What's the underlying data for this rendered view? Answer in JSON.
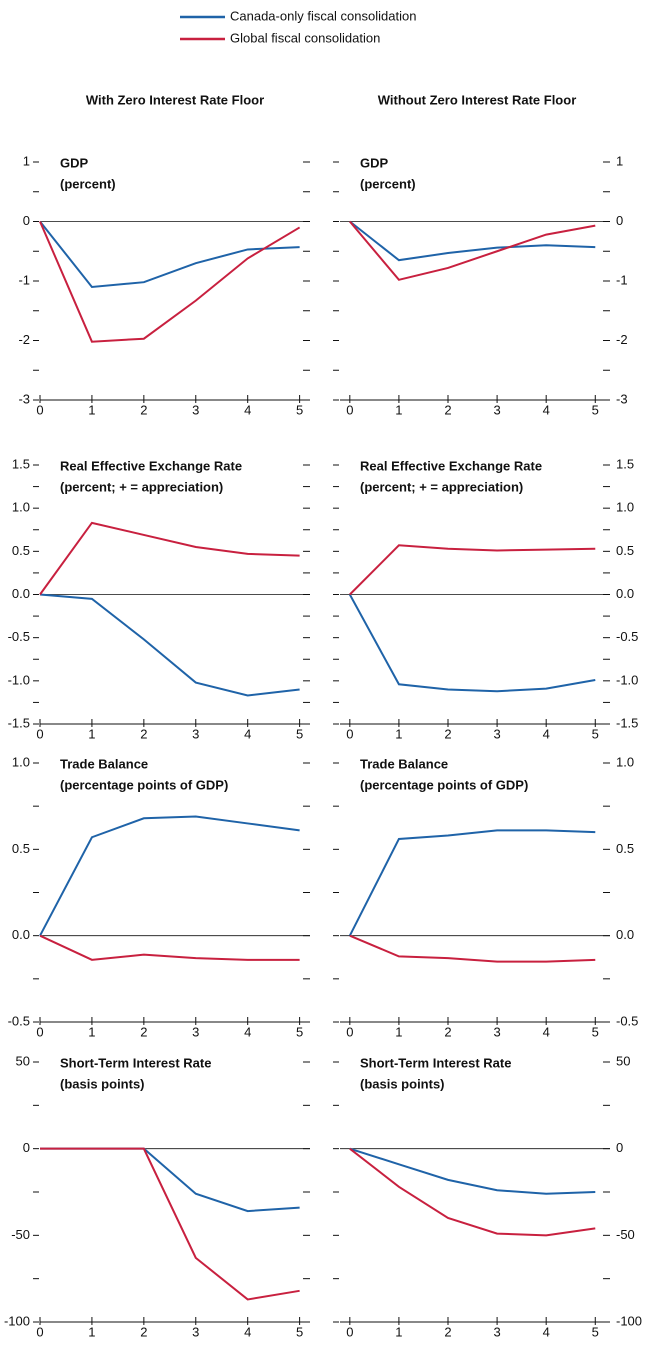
{
  "column_titles": [
    "With Zero Interest Rate Floor",
    "Without Zero Interest Rate Floor"
  ],
  "chart_data": [
    {
      "type": "line",
      "title": "GDP",
      "subtitle": "(percent)",
      "label_side": "left",
      "x": [
        0,
        1,
        2,
        3,
        4,
        5
      ],
      "xlim": [
        0,
        5.2
      ],
      "xticks": [
        0,
        1,
        2,
        3,
        4,
        5
      ],
      "ylim": [
        -3,
        1
      ],
      "yticks": [
        -3,
        -2,
        -1,
        0,
        1
      ],
      "yminorticks": [
        -2.5,
        -1.5,
        -0.5,
        0.5
      ],
      "zero_line": true,
      "series": [
        {
          "name": "Canada-only fiscal consolidation",
          "color": "#1f63a8",
          "values": [
            0,
            -1.1,
            -1.02,
            -0.7,
            -0.47,
            -0.43
          ]
        },
        {
          "name": "Global fiscal consolidation",
          "color": "#c8203f",
          "values": [
            0,
            -2.02,
            -1.97,
            -1.33,
            -0.62,
            -0.1
          ]
        }
      ]
    },
    {
      "type": "line",
      "title": "GDP",
      "subtitle": "(percent)",
      "label_side": "right",
      "x": [
        0,
        1,
        2,
        3,
        4,
        5
      ],
      "xlim": [
        -0.2,
        5.3
      ],
      "xticks": [
        0,
        1,
        2,
        3,
        4,
        5
      ],
      "ylim": [
        -3,
        1
      ],
      "yticks": [
        -3,
        -2,
        -1,
        0,
        1
      ],
      "yminorticks": [
        -2.5,
        -1.5,
        -0.5,
        0.5
      ],
      "zero_line": true,
      "series": [
        {
          "name": "Canada-only fiscal consolidation",
          "color": "#1f63a8",
          "values": [
            0,
            -0.65,
            -0.53,
            -0.44,
            -0.4,
            -0.43
          ]
        },
        {
          "name": "Global fiscal consolidation",
          "color": "#c8203f",
          "values": [
            0,
            -0.98,
            -0.78,
            -0.5,
            -0.22,
            -0.07
          ]
        }
      ]
    },
    {
      "type": "line",
      "title": "Real Effective Exchange Rate",
      "subtitle": "(percent; + = appreciation)",
      "label_side": "left",
      "x": [
        0,
        1,
        2,
        3,
        4,
        5
      ],
      "xlim": [
        0,
        5.2
      ],
      "xticks": [
        0,
        1,
        2,
        3,
        4,
        5
      ],
      "ylim": [
        -1.5,
        1.5
      ],
      "yticks": [
        -1.5,
        {
          "value": -1,
          "label": "-1.0"
        },
        -0.5,
        {
          "value": 0,
          "label": "0.0"
        },
        0.5,
        {
          "value": 1,
          "label": "1.0"
        },
        1.5
      ],
      "yminorticks": [
        -1.25,
        -0.75,
        -0.25,
        0.25,
        0.75,
        1.25
      ],
      "zero_line": true,
      "series": [
        {
          "name": "Canada-only fiscal consolidation",
          "color": "#1f63a8",
          "values": [
            0,
            -0.05,
            -0.52,
            -1.02,
            -1.17,
            -1.1
          ]
        },
        {
          "name": "Global fiscal consolidation",
          "color": "#c8203f",
          "values": [
            0,
            0.83,
            0.69,
            0.55,
            0.47,
            0.45
          ]
        }
      ]
    },
    {
      "type": "line",
      "title": "Real Effective Exchange Rate",
      "subtitle": "(percent; + = appreciation)",
      "label_side": "right",
      "x": [
        0,
        1,
        2,
        3,
        4,
        5
      ],
      "xlim": [
        -0.2,
        5.3
      ],
      "xticks": [
        0,
        1,
        2,
        3,
        4,
        5
      ],
      "ylim": [
        -1.5,
        1.5
      ],
      "yticks": [
        -1.5,
        {
          "value": -1,
          "label": "-1.0"
        },
        -0.5,
        {
          "value": 0,
          "label": "0.0"
        },
        0.5,
        {
          "value": 1,
          "label": "1.0"
        },
        1.5
      ],
      "yminorticks": [
        -1.25,
        -0.75,
        -0.25,
        0.25,
        0.75,
        1.25
      ],
      "zero_line": true,
      "series": [
        {
          "name": "Canada-only fiscal consolidation",
          "color": "#1f63a8",
          "values": [
            0,
            -1.04,
            -1.1,
            -1.12,
            -1.09,
            -0.99
          ]
        },
        {
          "name": "Global fiscal consolidation",
          "color": "#c8203f",
          "values": [
            0,
            0.57,
            0.53,
            0.51,
            0.52,
            0.53
          ]
        }
      ]
    },
    {
      "type": "line",
      "title": "Trade Balance",
      "subtitle": "(percentage points of GDP)",
      "label_side": "left",
      "x": [
        0,
        1,
        2,
        3,
        4,
        5
      ],
      "xlim": [
        0,
        5.2
      ],
      "xticks": [
        0,
        1,
        2,
        3,
        4,
        5
      ],
      "ylim": [
        -0.5,
        1
      ],
      "yticks": [
        -0.5,
        {
          "value": 0,
          "label": "0.0"
        },
        0.5,
        {
          "value": 1,
          "label": "1.0"
        }
      ],
      "yminorticks": [
        -0.25,
        0.25,
        0.75
      ],
      "zero_line": true,
      "series": [
        {
          "name": "Canada-only fiscal consolidation",
          "color": "#1f63a8",
          "values": [
            0,
            0.57,
            0.68,
            0.69,
            0.65,
            0.61
          ]
        },
        {
          "name": "Global fiscal consolidation",
          "color": "#c8203f",
          "values": [
            0,
            -0.14,
            -0.11,
            -0.13,
            -0.14,
            -0.14
          ]
        }
      ]
    },
    {
      "type": "line",
      "title": "Trade Balance",
      "subtitle": "(percentage points of GDP)",
      "label_side": "right",
      "x": [
        0,
        1,
        2,
        3,
        4,
        5
      ],
      "xlim": [
        -0.2,
        5.3
      ],
      "xticks": [
        0,
        1,
        2,
        3,
        4,
        5
      ],
      "ylim": [
        -0.5,
        1
      ],
      "yticks": [
        -0.5,
        {
          "value": 0,
          "label": "0.0"
        },
        0.5,
        {
          "value": 1,
          "label": "1.0"
        }
      ],
      "yminorticks": [
        -0.25,
        0.25,
        0.75
      ],
      "zero_line": true,
      "series": [
        {
          "name": "Canada-only fiscal consolidation",
          "color": "#1f63a8",
          "values": [
            0,
            0.56,
            0.58,
            0.61,
            0.61,
            0.6
          ]
        },
        {
          "name": "Global fiscal consolidation",
          "color": "#c8203f",
          "values": [
            0,
            -0.12,
            -0.13,
            -0.15,
            -0.15,
            -0.14
          ]
        }
      ]
    },
    {
      "type": "line",
      "title": "Short-Term Interest Rate",
      "subtitle": "(basis points)",
      "label_side": "left",
      "x": [
        0,
        1,
        2,
        3,
        4,
        5
      ],
      "xlim": [
        0,
        5.2
      ],
      "xticks": [
        0,
        1,
        2,
        3,
        4,
        5
      ],
      "ylim": [
        -100,
        50
      ],
      "yticks": [
        -100,
        -50,
        0,
        50
      ],
      "yminorticks": [
        -75,
        -25,
        25
      ],
      "zero_line": true,
      "series": [
        {
          "name": "Canada-only fiscal consolidation",
          "color": "#1f63a8",
          "values": [
            0,
            0,
            0,
            -26,
            -36,
            -34
          ]
        },
        {
          "name": "Global fiscal consolidation",
          "color": "#c8203f",
          "values": [
            0,
            0,
            0,
            -63,
            -87,
            -82
          ]
        }
      ]
    },
    {
      "type": "line",
      "title": "Short-Term Interest Rate",
      "subtitle": "(basis points)",
      "label_side": "right",
      "x": [
        0,
        1,
        2,
        3,
        4,
        5
      ],
      "xlim": [
        -0.2,
        5.3
      ],
      "xticks": [
        0,
        1,
        2,
        3,
        4,
        5
      ],
      "ylim": [
        -100,
        50
      ],
      "yticks": [
        -100,
        -50,
        0,
        50
      ],
      "yminorticks": [
        -75,
        -25,
        25
      ],
      "zero_line": true,
      "series": [
        {
          "name": "Canada-only fiscal consolidation",
          "color": "#1f63a8",
          "values": [
            0,
            -9,
            -18,
            -24,
            -26,
            -25
          ]
        },
        {
          "name": "Global fiscal consolidation",
          "color": "#c8203f",
          "values": [
            0,
            -22,
            -40,
            -49,
            -50,
            -46
          ]
        }
      ]
    }
  ]
}
